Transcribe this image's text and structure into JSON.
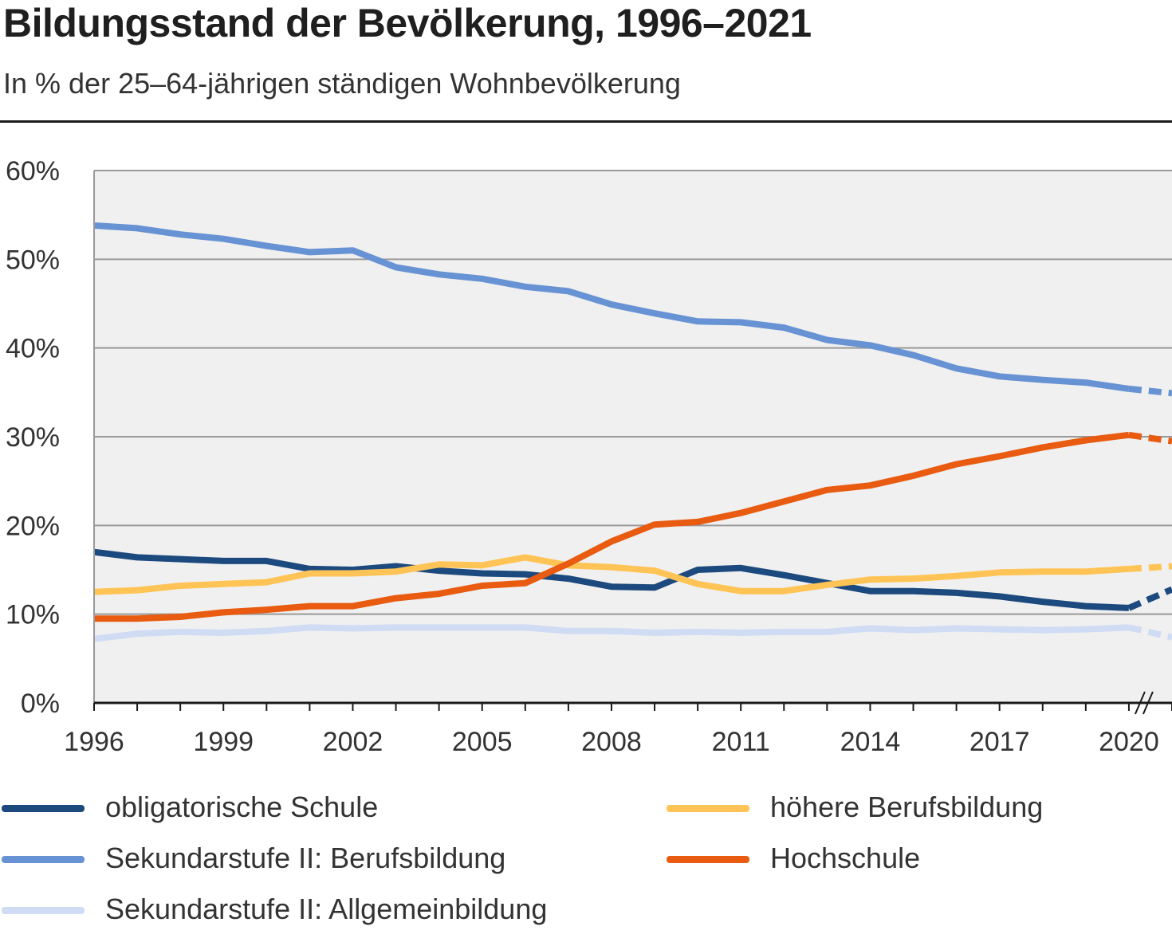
{
  "header": {
    "title": "Bildungsstand der Bevölkerung, 1996–2021",
    "subtitle": "In % der 25–64-jährigen ständigen Wohnbevölkerung"
  },
  "chart_data": {
    "type": "line",
    "title": "Bildungsstand der Bevölkerung, 1996–2021",
    "subtitle": "In % der 25–64-jährigen ständigen Wohnbevölkerung",
    "xlabel": "",
    "ylabel": "",
    "x": [
      1996,
      1997,
      1998,
      1999,
      2000,
      2001,
      2002,
      2003,
      2004,
      2005,
      2006,
      2007,
      2008,
      2009,
      2010,
      2011,
      2012,
      2013,
      2014,
      2015,
      2016,
      2017,
      2018,
      2019,
      2020,
      2021
    ],
    "x_tick_labels": [
      "1996",
      "1999",
      "2002",
      "2005",
      "2008",
      "2011",
      "2014",
      "2017",
      "2020"
    ],
    "y_tick_labels": [
      "0%",
      "10%",
      "20%",
      "30%",
      "40%",
      "50%",
      "60%"
    ],
    "ylim": [
      0,
      60
    ],
    "xlim": [
      1996,
      2021
    ],
    "grid": true,
    "axis_break_after": 2020,
    "dashed_segment": [
      2020,
      2021
    ],
    "legend_position": "bottom",
    "series": [
      {
        "name": "obligatorische Schule",
        "color": "#1d4a7e",
        "values": [
          17.0,
          16.4,
          16.2,
          16.0,
          16.0,
          15.1,
          15.0,
          15.4,
          14.9,
          14.6,
          14.5,
          14.0,
          13.1,
          13.0,
          15.0,
          15.2,
          14.4,
          13.5,
          12.6,
          12.6,
          12.4,
          12.0,
          11.4,
          10.9,
          10.7,
          12.8
        ]
      },
      {
        "name": "Sekundarstufe II: Berufsbildung",
        "color": "#6792d3",
        "values": [
          53.8,
          53.5,
          52.8,
          52.3,
          51.5,
          50.8,
          51.0,
          49.1,
          48.3,
          47.8,
          46.9,
          46.4,
          44.9,
          43.9,
          43.0,
          42.9,
          42.3,
          40.9,
          40.3,
          39.2,
          37.7,
          36.8,
          36.4,
          36.1,
          35.4,
          34.9
        ]
      },
      {
        "name": "Sekundarstufe II: Allgemeinbildung",
        "color": "#cfdcf4",
        "values": [
          7.2,
          7.8,
          8.0,
          7.9,
          8.1,
          8.5,
          8.4,
          8.5,
          8.5,
          8.5,
          8.5,
          8.1,
          8.1,
          7.9,
          8.0,
          7.9,
          8.0,
          8.0,
          8.4,
          8.2,
          8.4,
          8.3,
          8.2,
          8.3,
          8.5,
          7.4
        ]
      },
      {
        "name": "höhere Berufsbildung",
        "color": "#ffc455",
        "values": [
          12.5,
          12.7,
          13.2,
          13.4,
          13.6,
          14.6,
          14.6,
          14.8,
          15.6,
          15.5,
          16.4,
          15.5,
          15.3,
          14.9,
          13.4,
          12.6,
          12.6,
          13.3,
          13.9,
          14.0,
          14.3,
          14.7,
          14.8,
          14.8,
          15.1,
          15.4
        ]
      },
      {
        "name": "Hochschule",
        "color": "#e85b10",
        "values": [
          9.5,
          9.5,
          9.7,
          10.2,
          10.5,
          10.9,
          10.9,
          11.8,
          12.3,
          13.2,
          13.5,
          15.7,
          18.2,
          20.1,
          20.4,
          21.4,
          22.7,
          24.0,
          24.5,
          25.6,
          26.9,
          27.8,
          28.8,
          29.6,
          30.2,
          29.5
        ]
      }
    ]
  },
  "legend": {
    "items": [
      {
        "label": "obligatorische Schule",
        "color": "#1d4a7e"
      },
      {
        "label": "höhere Berufsbildung",
        "color": "#ffc455"
      },
      {
        "label": "Sekundarstufe II: Berufsbildung",
        "color": "#6792d3"
      },
      {
        "label": "Hochschule",
        "color": "#e85b10"
      },
      {
        "label": "Sekundarstufe II: Allgemeinbildung",
        "color": "#cfdcf4"
      }
    ]
  }
}
